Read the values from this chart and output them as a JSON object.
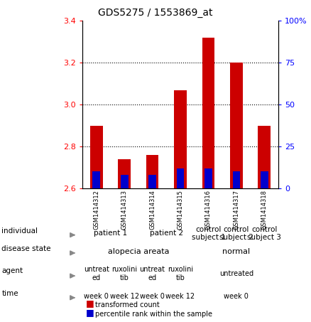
{
  "title": "GDS5275 / 1553869_at",
  "samples": [
    "GSM1414312",
    "GSM1414313",
    "GSM1414314",
    "GSM1414315",
    "GSM1414316",
    "GSM1414317",
    "GSM1414318"
  ],
  "transformed_count": [
    2.9,
    2.74,
    2.76,
    3.07,
    3.32,
    3.2,
    2.9
  ],
  "percentile_rank": [
    10,
    8,
    8,
    12,
    12,
    10,
    10
  ],
  "bar_bottom": 2.6,
  "ylim_left": [
    2.6,
    3.4
  ],
  "ylim_right": [
    0,
    100
  ],
  "yticks_left": [
    2.6,
    2.8,
    3.0,
    3.2,
    3.4
  ],
  "yticks_right": [
    0,
    25,
    50,
    75,
    100
  ],
  "ytick_labels_right": [
    "0",
    "25",
    "50",
    "75",
    "100%"
  ],
  "bar_color": "#cc0000",
  "percentile_color": "#0000cc",
  "individual_groups": [
    {
      "label": "patient 1",
      "cols": [
        0,
        1
      ],
      "color": "#ccffcc"
    },
    {
      "label": "patient 2",
      "cols": [
        2,
        3
      ],
      "color": "#aaffcc"
    },
    {
      "label": "control\nsubject 1",
      "cols": [
        4
      ],
      "color": "#66dd66"
    },
    {
      "label": "control\nsubject 2",
      "cols": [
        5
      ],
      "color": "#66dd66"
    },
    {
      "label": "control\nsubject 3",
      "cols": [
        6
      ],
      "color": "#66dd66"
    }
  ],
  "disease_groups": [
    {
      "label": "alopecia areata",
      "cols": [
        0,
        1,
        2,
        3
      ],
      "color": "#88aaee"
    },
    {
      "label": "normal",
      "cols": [
        4,
        5,
        6
      ],
      "color": "#aaddff"
    }
  ],
  "agent_groups": [
    {
      "label": "untreat\ned",
      "cols": [
        0
      ],
      "color": "#ffaaff"
    },
    {
      "label": "ruxolini\ntib",
      "cols": [
        1
      ],
      "color": "#ee88ee"
    },
    {
      "label": "untreat\ned",
      "cols": [
        2
      ],
      "color": "#ffaaff"
    },
    {
      "label": "ruxolini\ntib",
      "cols": [
        3
      ],
      "color": "#ee88ee"
    },
    {
      "label": "untreated",
      "cols": [
        4,
        5,
        6
      ],
      "color": "#ffaaff"
    }
  ],
  "time_groups": [
    {
      "label": "week 0",
      "cols": [
        0
      ],
      "color": "#f0bb77"
    },
    {
      "label": "week 12",
      "cols": [
        1
      ],
      "color": "#f0bb77"
    },
    {
      "label": "week 0",
      "cols": [
        2
      ],
      "color": "#f0bb77"
    },
    {
      "label": "week 12",
      "cols": [
        3
      ],
      "color": "#f0bb77"
    },
    {
      "label": "week 0",
      "cols": [
        4,
        5,
        6
      ],
      "color": "#f0bb77"
    }
  ],
  "sample_bg_color": "#c8c8c8"
}
